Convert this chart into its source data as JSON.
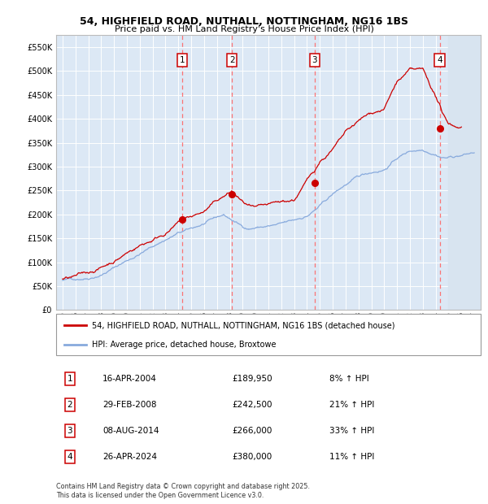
{
  "title_line1": "54, HIGHFIELD ROAD, NUTHALL, NOTTINGHAM, NG16 1BS",
  "title_line2": "Price paid vs. HM Land Registry's House Price Index (HPI)",
  "plot_bg_color": "#dce8f5",
  "grid_color": "#ffffff",
  "ylim": [
    0,
    575000
  ],
  "yticks": [
    0,
    50000,
    100000,
    150000,
    200000,
    250000,
    300000,
    350000,
    400000,
    450000,
    500000,
    550000
  ],
  "ytick_labels": [
    "£0",
    "£50K",
    "£100K",
    "£150K",
    "£200K",
    "£250K",
    "£300K",
    "£350K",
    "£400K",
    "£450K",
    "£500K",
    "£550K"
  ],
  "xlim_start": 1994.5,
  "xlim_end": 2027.5,
  "xtick_years": [
    1995,
    1996,
    1997,
    1998,
    1999,
    2000,
    2001,
    2002,
    2003,
    2004,
    2005,
    2006,
    2007,
    2008,
    2009,
    2010,
    2011,
    2012,
    2013,
    2014,
    2015,
    2016,
    2017,
    2018,
    2019,
    2020,
    2021,
    2022,
    2023,
    2024,
    2025,
    2026,
    2027
  ],
  "red_line_color": "#cc0000",
  "blue_line_color": "#88aadd",
  "sale_marker_color": "#cc0000",
  "dashed_line_color": "#ff6666",
  "transactions": [
    {
      "id": 1,
      "date_x": 2004.29,
      "price": 189950,
      "label": "16-APR-2004",
      "amount": "£189,950",
      "pct": "8% ↑ HPI"
    },
    {
      "id": 2,
      "date_x": 2008.16,
      "price": 242500,
      "label": "29-FEB-2008",
      "amount": "£242,500",
      "pct": "21% ↑ HPI"
    },
    {
      "id": 3,
      "date_x": 2014.6,
      "price": 266000,
      "label": "08-AUG-2014",
      "amount": "£266,000",
      "pct": "33% ↑ HPI"
    },
    {
      "id": 4,
      "date_x": 2024.32,
      "price": 380000,
      "label": "26-APR-2024",
      "amount": "£380,000",
      "pct": "11% ↑ HPI"
    }
  ],
  "legend_line1": "54, HIGHFIELD ROAD, NUTHALL, NOTTINGHAM, NG16 1BS (detached house)",
  "legend_line2": "HPI: Average price, detached house, Broxtowe",
  "footer_line1": "Contains HM Land Registry data © Crown copyright and database right 2025.",
  "footer_line2": "This data is licensed under the Open Government Licence v3.0.",
  "hpi_t": [
    1995,
    1996,
    1997,
    1998,
    1999,
    2000,
    2001,
    2002,
    2003,
    2004,
    2005,
    2006,
    2007,
    2007.5,
    2008,
    2009,
    2009.5,
    2010,
    2011,
    2012,
    2013,
    2014,
    2015,
    2016,
    2017,
    2018,
    2019,
    2020,
    2021,
    2022,
    2023,
    2024,
    2024.5,
    2025,
    2026,
    2027
  ],
  "hpi_v": [
    62000,
    65000,
    70000,
    80000,
    95000,
    110000,
    125000,
    140000,
    155000,
    168000,
    175000,
    185000,
    195000,
    200000,
    192000,
    175000,
    172000,
    175000,
    178000,
    180000,
    185000,
    195000,
    215000,
    238000,
    258000,
    272000,
    282000,
    290000,
    315000,
    330000,
    335000,
    330000,
    325000,
    325000,
    330000,
    335000
  ],
  "price_t": [
    1995,
    1996,
    1997,
    1998,
    1999,
    2000,
    2001,
    2002,
    2003,
    2004.29,
    2005,
    2006,
    2007,
    2008.16,
    2009,
    2010,
    2011,
    2012,
    2013,
    2014.6,
    2015,
    2016,
    2017,
    2018,
    2019,
    2020,
    2021,
    2022,
    2023,
    2024.32,
    2024.5,
    2025,
    2025.5,
    2026
  ],
  "price_v": [
    65000,
    68000,
    73000,
    85000,
    100000,
    118000,
    135000,
    148000,
    165000,
    189950,
    195000,
    205000,
    225000,
    242500,
    218000,
    200000,
    198000,
    200000,
    205000,
    266000,
    285000,
    310000,
    340000,
    360000,
    375000,
    385000,
    440000,
    460000,
    455000,
    380000,
    360000,
    340000,
    335000,
    335000
  ]
}
